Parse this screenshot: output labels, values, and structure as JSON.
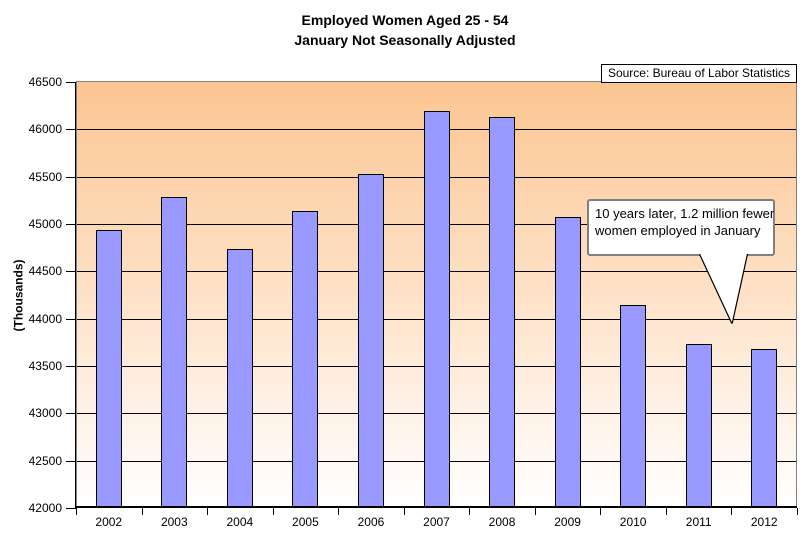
{
  "title": {
    "line1": "Employed Women Aged 25 - 54",
    "line2": "January Not Seasonally Adjusted"
  },
  "source_box": {
    "text": "Source: Bureau of Labor Statistics"
  },
  "callout": {
    "line1": "10 years later, 1.2 million fewer",
    "line2": "women employed in January",
    "points_to_category": "2011"
  },
  "y_axis": {
    "label": "(Thousands)",
    "tick_labels": [
      "46500",
      "46000",
      "45500",
      "45000",
      "44500",
      "44000",
      "43500",
      "43000",
      "42500",
      "42000"
    ]
  },
  "chart_data": {
    "type": "bar",
    "title": "Employed Women Aged 25 - 54",
    "subtitle": "January Not Seasonally Adjusted",
    "categories": [
      "2002",
      "2003",
      "2004",
      "2005",
      "2006",
      "2007",
      "2008",
      "2009",
      "2010",
      "2011",
      "2012"
    ],
    "values": [
      44935,
      45286,
      44731,
      45138,
      45532,
      46192,
      46128,
      45072,
      44146,
      43736,
      43684
    ],
    "xlabel": "",
    "ylabel": "(Thousands)",
    "ylim": [
      42000,
      46500
    ],
    "ytick_step": 500,
    "grid": true,
    "legend_position": "none",
    "annotation": "10 years later, 1.2 million fewer women employed in January",
    "source": "Source: Bureau of Labor Statistics",
    "colors": {
      "bar_fill": "#9999FF",
      "bar_border": "#000000",
      "plot_gradient_top": "#FCC591",
      "plot_gradient_bottom": "#FFFFFF",
      "gridline": "#000000",
      "plot_border": "#808080",
      "callout_border": "#808080",
      "text": "#000000"
    }
  }
}
